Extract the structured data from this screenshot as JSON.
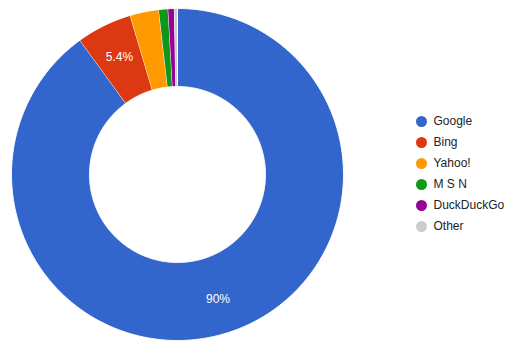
{
  "chart_data": {
    "type": "donut",
    "categories": [
      "Google",
      "Bing",
      "Yahoo!",
      "M S N",
      "DuckDuckGo",
      "Other"
    ],
    "values": [
      90,
      5.4,
      2.8,
      0.9,
      0.6,
      0.3
    ],
    "value_labels": [
      "90%",
      "5.4%",
      null,
      null,
      null,
      null
    ],
    "colors": [
      "#3366cc",
      "#dc3912",
      "#ff9900",
      "#109618",
      "#990099",
      "#cccccc"
    ],
    "data_labels": true,
    "legend": "right",
    "tick_labels": false
  }
}
